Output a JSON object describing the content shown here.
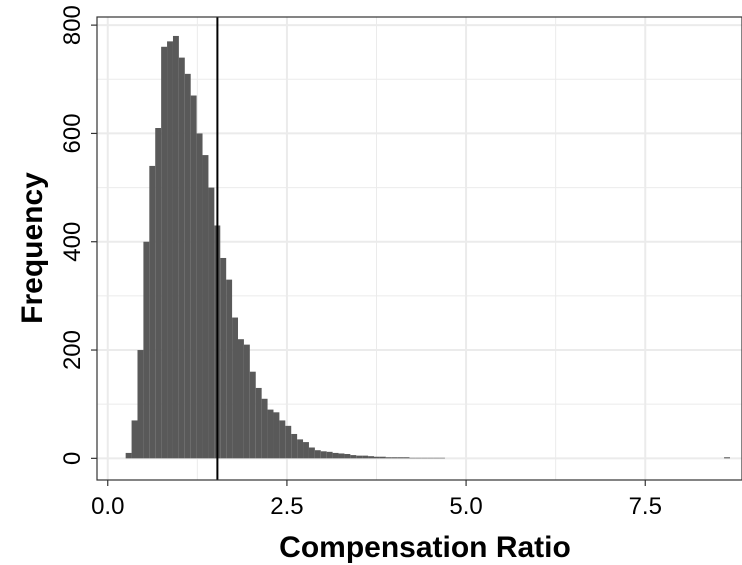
{
  "chart_data": {
    "type": "bar",
    "subtype": "histogram",
    "title": "",
    "xlabel": "Compensation Ratio",
    "ylabel": "Frequency",
    "xlim": [
      -0.15,
      8.85
    ],
    "ylim": [
      -40,
      815
    ],
    "x_ticks": [
      0.0,
      2.5,
      5.0,
      7.5
    ],
    "x_tick_labels": [
      "0.0",
      "2.5",
      "5.0",
      "7.5"
    ],
    "y_ticks": [
      0,
      200,
      400,
      600,
      800
    ],
    "y_tick_labels": [
      "0",
      "200",
      "400",
      "600",
      "800"
    ],
    "bin_width": 0.0825,
    "bin_starts": [
      0.25,
      0.3325,
      0.415,
      0.4975,
      0.58,
      0.6625,
      0.745,
      0.8275,
      0.91,
      0.9925,
      1.075,
      1.1575,
      1.24,
      1.3225,
      1.405,
      1.4875,
      1.57,
      1.6525,
      1.735,
      1.8175,
      1.9,
      1.9825,
      2.065,
      2.1475,
      2.23,
      2.3125,
      2.395,
      2.4775,
      2.56,
      2.6425,
      2.725,
      2.8075,
      2.89,
      2.9725,
      3.055,
      3.1375,
      3.22,
      3.3025,
      3.385,
      3.4675,
      3.55,
      3.6325,
      3.715,
      3.7975,
      3.88,
      3.9625,
      4.045,
      4.1275,
      4.21,
      4.2925,
      4.375,
      4.4575,
      4.54,
      4.6225,
      8.6
    ],
    "values": [
      10,
      70,
      200,
      400,
      540,
      610,
      760,
      770,
      780,
      740,
      710,
      670,
      600,
      560,
      500,
      430,
      370,
      330,
      260,
      220,
      210,
      160,
      130,
      110,
      90,
      85,
      70,
      60,
      45,
      35,
      30,
      20,
      15,
      13,
      12,
      10,
      9,
      8,
      6,
      5,
      5,
      4,
      3,
      3,
      2,
      2,
      2,
      2,
      1,
      1,
      1,
      1,
      1,
      1,
      2
    ],
    "bar_color": "#595959",
    "vline": {
      "x": 1.53,
      "color": "#000000"
    },
    "grid": true,
    "gridline_color": "#ebebeb",
    "legend": "none"
  }
}
